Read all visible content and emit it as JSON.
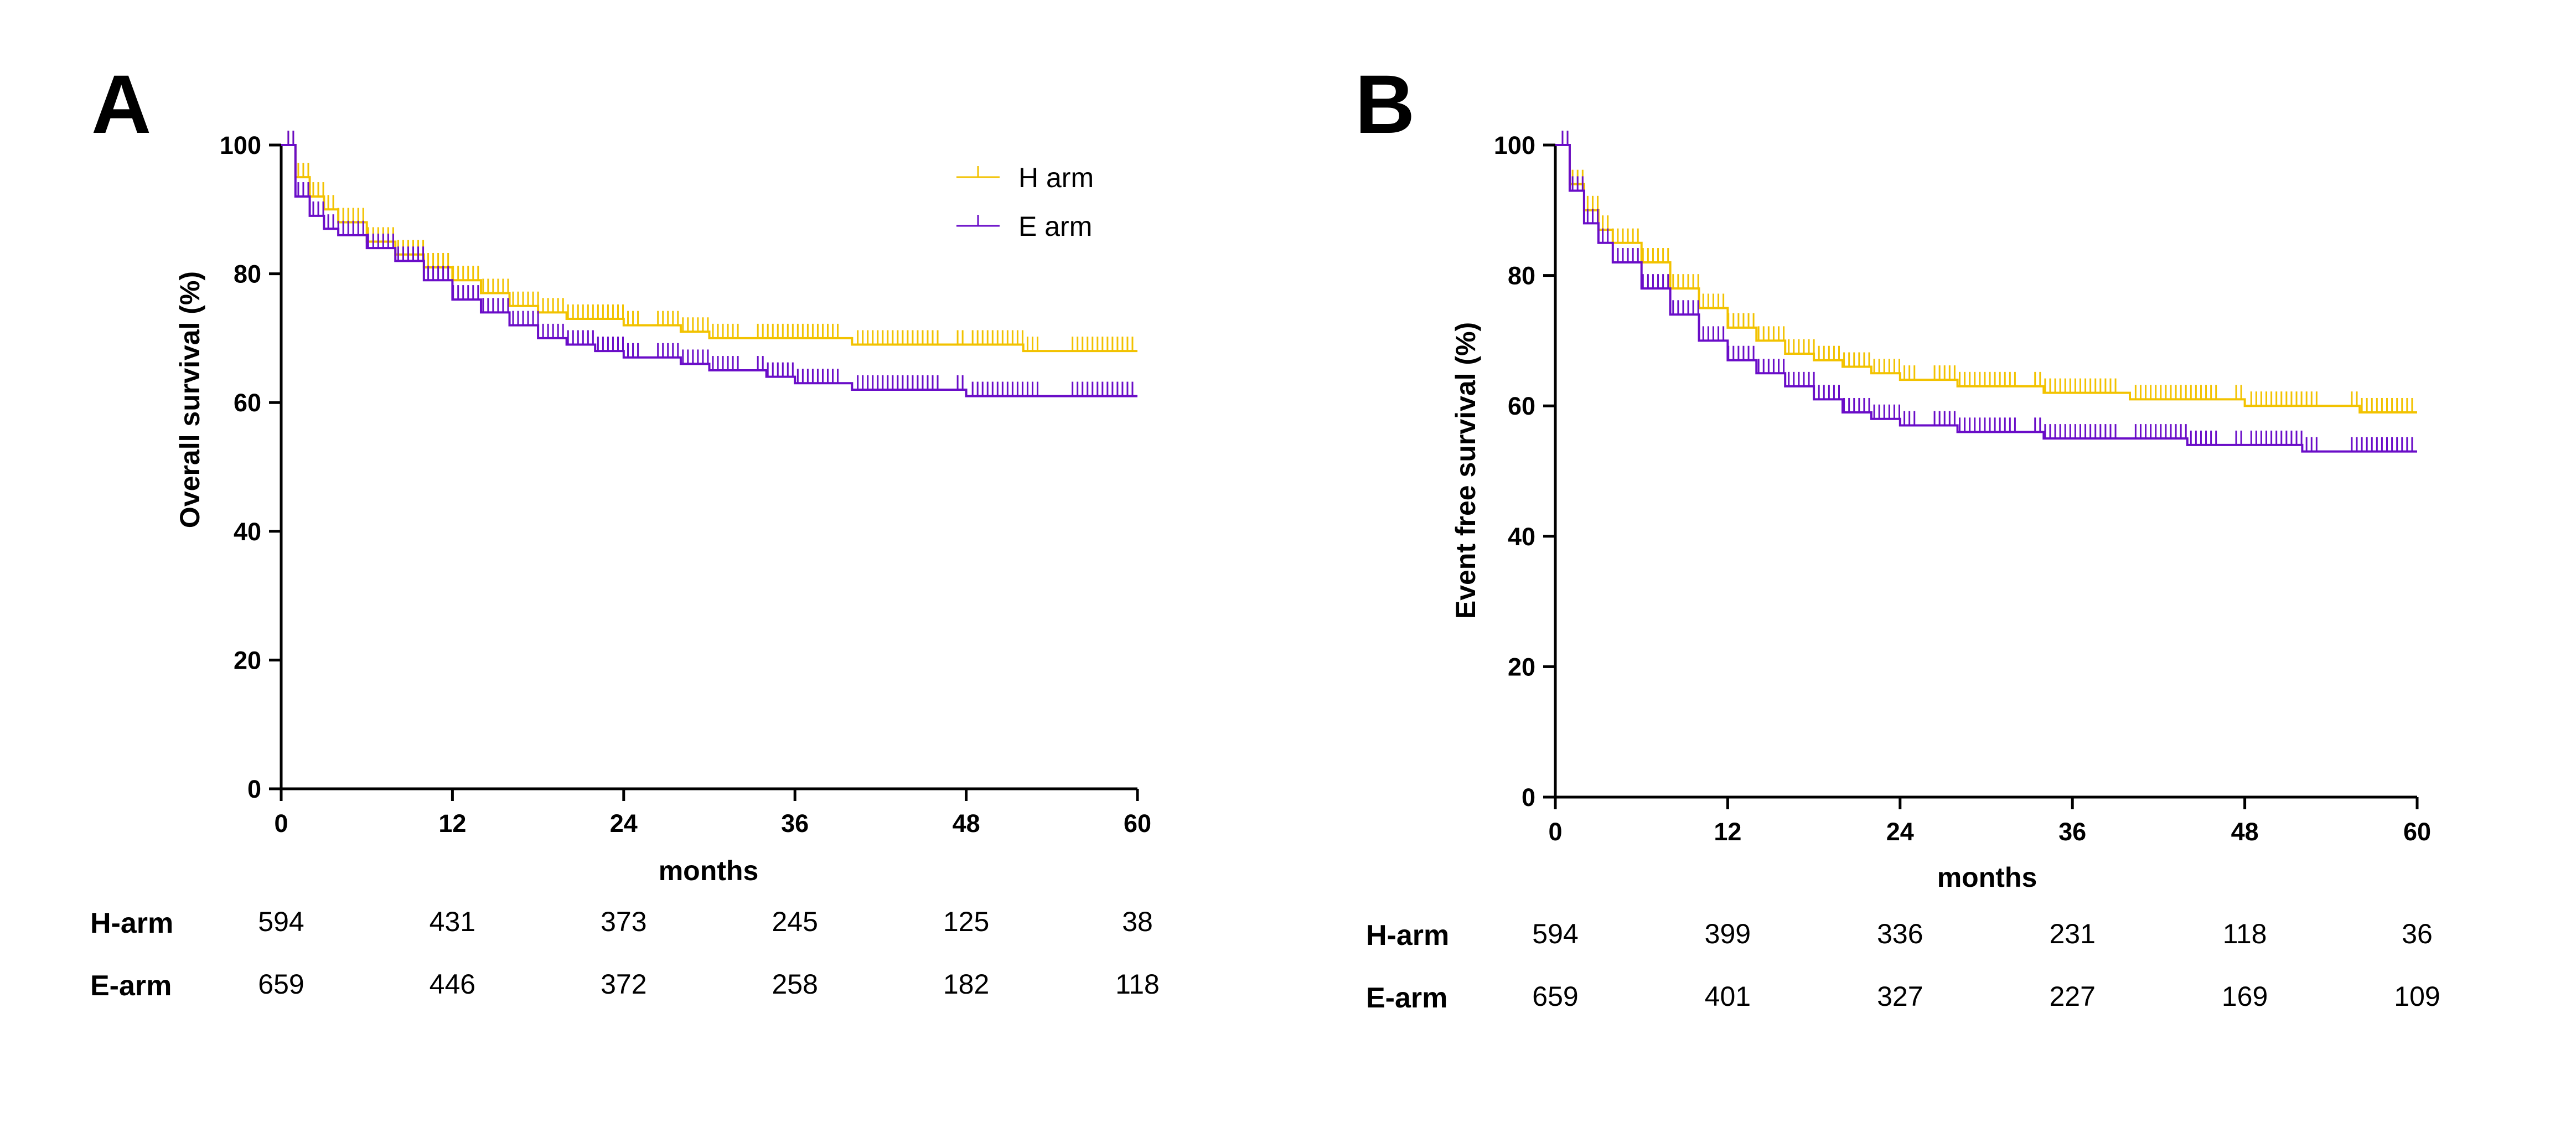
{
  "chart_data": [
    {
      "type": "line",
      "panel_label": "A",
      "ylabel": "Overall survival (%)",
      "xlabel": "months",
      "x_ticks": [
        "0",
        "12",
        "24",
        "36",
        "48",
        "60"
      ],
      "y_ticks": [
        "0",
        "20",
        "40",
        "60",
        "80",
        "100"
      ],
      "xlim": [
        0,
        60
      ],
      "ylim": [
        0,
        100
      ],
      "legend": {
        "position": "top-right",
        "entries": [
          "H arm",
          "E arm"
        ]
      },
      "series": [
        {
          "name": "H arm",
          "color": "#F2C200",
          "x": [
            0,
            1,
            2,
            3,
            4,
            6,
            8,
            10,
            12,
            14,
            16,
            18,
            20,
            22,
            24,
            28,
            30,
            34,
            36,
            40,
            44,
            48,
            52,
            56,
            60
          ],
          "y": [
            100,
            95,
            92,
            90,
            88,
            85,
            83,
            81,
            79,
            77,
            75,
            74,
            73,
            73,
            72,
            71,
            70,
            70,
            70,
            69,
            69,
            69,
            68,
            68,
            68
          ]
        },
        {
          "name": "E arm",
          "color": "#6A0DC8",
          "x": [
            0,
            1,
            2,
            3,
            4,
            6,
            8,
            10,
            12,
            14,
            16,
            18,
            20,
            22,
            24,
            28,
            30,
            34,
            36,
            40,
            44,
            48,
            52,
            56,
            60
          ],
          "y": [
            100,
            92,
            89,
            87,
            86,
            84,
            82,
            79,
            76,
            74,
            72,
            70,
            69,
            68,
            67,
            66,
            65,
            64,
            63,
            62,
            62,
            61,
            61,
            61,
            61
          ]
        }
      ],
      "risk_table": {
        "rows": [
          {
            "label": "H-arm",
            "counts": [
              "594",
              "431",
              "373",
              "245",
              "125",
              "38"
            ]
          },
          {
            "label": "E-arm",
            "counts": [
              "659",
              "446",
              "372",
              "258",
              "182",
              "118"
            ]
          }
        ]
      }
    },
    {
      "type": "line",
      "panel_label": "B",
      "ylabel": "Event free survival (%)",
      "xlabel": "months",
      "x_ticks": [
        "0",
        "12",
        "24",
        "36",
        "48",
        "60"
      ],
      "y_ticks": [
        "0",
        "20",
        "40",
        "60",
        "80",
        "100"
      ],
      "xlim": [
        0,
        60
      ],
      "ylim": [
        0,
        100
      ],
      "series": [
        {
          "name": "H arm",
          "color": "#F2C200",
          "x": [
            0,
            1,
            2,
            3,
            4,
            6,
            8,
            10,
            12,
            14,
            16,
            18,
            20,
            22,
            24,
            28,
            30,
            34,
            36,
            40,
            44,
            48,
            52,
            56,
            60
          ],
          "y": [
            100,
            94,
            90,
            87,
            85,
            82,
            78,
            75,
            72,
            70,
            68,
            67,
            66,
            65,
            64,
            63,
            63,
            62,
            62,
            61,
            61,
            60,
            60,
            59,
            59
          ]
        },
        {
          "name": "E arm",
          "color": "#6A0DC8",
          "x": [
            0,
            1,
            2,
            3,
            4,
            6,
            8,
            10,
            12,
            14,
            16,
            18,
            20,
            22,
            24,
            28,
            30,
            34,
            36,
            40,
            44,
            48,
            52,
            56,
            60
          ],
          "y": [
            100,
            93,
            88,
            85,
            82,
            78,
            74,
            70,
            67,
            65,
            63,
            61,
            59,
            58,
            57,
            56,
            56,
            55,
            55,
            55,
            54,
            54,
            53,
            53,
            53
          ]
        }
      ],
      "risk_table": {
        "rows": [
          {
            "label": "H-arm",
            "counts": [
              "594",
              "399",
              "336",
              "231",
              "118",
              "36"
            ]
          },
          {
            "label": "E-arm",
            "counts": [
              "659",
              "401",
              "327",
              "227",
              "169",
              "109"
            ]
          }
        ]
      }
    }
  ]
}
